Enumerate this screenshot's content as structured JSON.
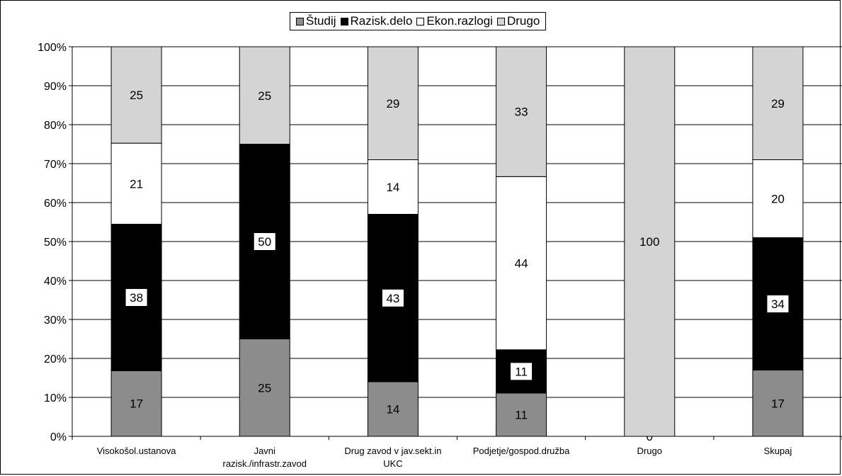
{
  "chart_data": {
    "type": "bar",
    "stacked": true,
    "percent": true,
    "categories": [
      [
        "Visokošol.ustanova"
      ],
      [
        "Javni",
        "razisk./infrastr.zavod"
      ],
      [
        "Drug zavod v jav.sekt.in",
        "UKC"
      ],
      [
        "Podjetje/gospod.družba"
      ],
      [
        "Drugo"
      ],
      [
        "Skupaj"
      ]
    ],
    "series": [
      {
        "name": "Študij",
        "color": "#8c8c8c",
        "label_color": "#000000",
        "values": [
          17,
          25,
          14,
          11,
          0,
          17
        ]
      },
      {
        "name": "Razisk.delo",
        "color": "#000000",
        "label_color": "#000000",
        "values": [
          38,
          50,
          43,
          11,
          0,
          34
        ]
      },
      {
        "name": "Ekon.razlogi",
        "color": "#ffffff",
        "label_color": "#000000",
        "values": [
          21,
          0,
          14,
          44,
          0,
          20
        ]
      },
      {
        "name": "Drugo",
        "color": "#d4d4d4",
        "label_color": "#000000",
        "values": [
          25,
          25,
          29,
          33,
          100,
          29
        ]
      }
    ],
    "y_ticks": [
      "0%",
      "10%",
      "20%",
      "30%",
      "40%",
      "50%",
      "60%",
      "70%",
      "80%",
      "90%",
      "100%"
    ],
    "ylim": [
      0,
      100
    ],
    "grid": true,
    "legend_position": "top-center"
  }
}
